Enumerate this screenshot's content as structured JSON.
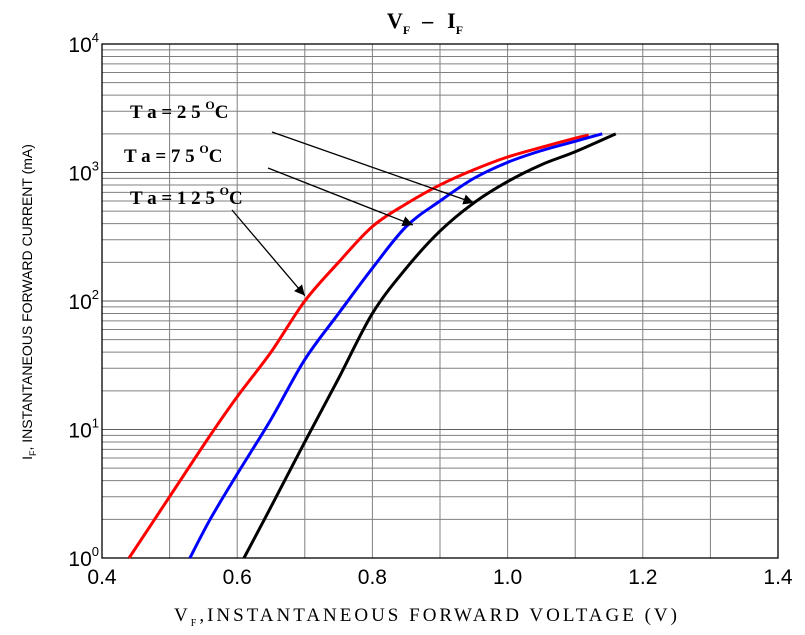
{
  "chart_data": {
    "type": "line",
    "title": {
      "v": "V",
      "v_sub": "F",
      "dash": "–",
      "i": "I",
      "i_sub": "F"
    },
    "xlabel": {
      "main": "V",
      "sub": "F",
      "rest": ",INSTANTANEOUS FORWARD VOLTAGE (V)"
    },
    "ylabel": {
      "main": "I",
      "sub": "F",
      "rest": ", INSTANTANEOUS FORWARD CURRENT (mA)"
    },
    "x_scale": "linear",
    "y_scale": "log",
    "xlim": [
      0.4,
      1.4
    ],
    "ylim": [
      1,
      10000
    ],
    "grid": true,
    "x_ticks": [
      "0.4",
      "0.6",
      "0.8",
      "1.0",
      "1.2",
      "1.4"
    ],
    "y_ticks": [
      {
        "base": "10",
        "exp": "0"
      },
      {
        "base": "10",
        "exp": "1"
      },
      {
        "base": "10",
        "exp": "2"
      },
      {
        "base": "10",
        "exp": "3"
      },
      {
        "base": "10",
        "exp": "4"
      }
    ],
    "series": [
      {
        "name": "Ta=125°C",
        "label_parts": [
          "T a = 1 2 5 ",
          "O",
          "C"
        ],
        "color": "#ff0000",
        "points": [
          [
            0.44,
            1
          ],
          [
            0.5,
            3
          ],
          [
            0.56,
            9
          ],
          [
            0.6,
            18
          ],
          [
            0.65,
            40
          ],
          [
            0.7,
            100
          ],
          [
            0.75,
            200
          ],
          [
            0.8,
            380
          ],
          [
            0.85,
            570
          ],
          [
            0.9,
            800
          ],
          [
            0.95,
            1050
          ],
          [
            1.0,
            1320
          ],
          [
            1.05,
            1570
          ],
          [
            1.1,
            1850
          ],
          [
            1.12,
            1950
          ]
        ]
      },
      {
        "name": "Ta=75°C",
        "label_parts": [
          "T a = 7 5 ",
          "O",
          "C"
        ],
        "color": "#0000ff",
        "points": [
          [
            0.53,
            1
          ],
          [
            0.56,
            2
          ],
          [
            0.6,
            4.5
          ],
          [
            0.65,
            12
          ],
          [
            0.7,
            35
          ],
          [
            0.75,
            80
          ],
          [
            0.8,
            180
          ],
          [
            0.85,
            380
          ],
          [
            0.9,
            600
          ],
          [
            0.95,
            900
          ],
          [
            1.0,
            1200
          ],
          [
            1.05,
            1480
          ],
          [
            1.1,
            1750
          ],
          [
            1.14,
            2000
          ]
        ]
      },
      {
        "name": "Ta=25°C",
        "label_parts": [
          "T a =  2 5 ",
          "O",
          "C"
        ],
        "color": "#000000",
        "points": [
          [
            0.61,
            1
          ],
          [
            0.65,
            2.5
          ],
          [
            0.7,
            8
          ],
          [
            0.75,
            25
          ],
          [
            0.8,
            80
          ],
          [
            0.85,
            180
          ],
          [
            0.9,
            350
          ],
          [
            0.95,
            580
          ],
          [
            1.0,
            850
          ],
          [
            1.05,
            1150
          ],
          [
            1.1,
            1450
          ],
          [
            1.16,
            2000
          ]
        ]
      }
    ],
    "annotations": [
      {
        "series": "Ta=25°C",
        "label_anchor": "start",
        "arrow_to": [
          0.95,
          580
        ]
      },
      {
        "series": "Ta=75°C",
        "label_anchor": "start",
        "arrow_to": [
          0.86,
          390
        ]
      },
      {
        "series": "Ta=125°C",
        "label_anchor": "start",
        "arrow_to": [
          0.7,
          110
        ]
      }
    ]
  }
}
